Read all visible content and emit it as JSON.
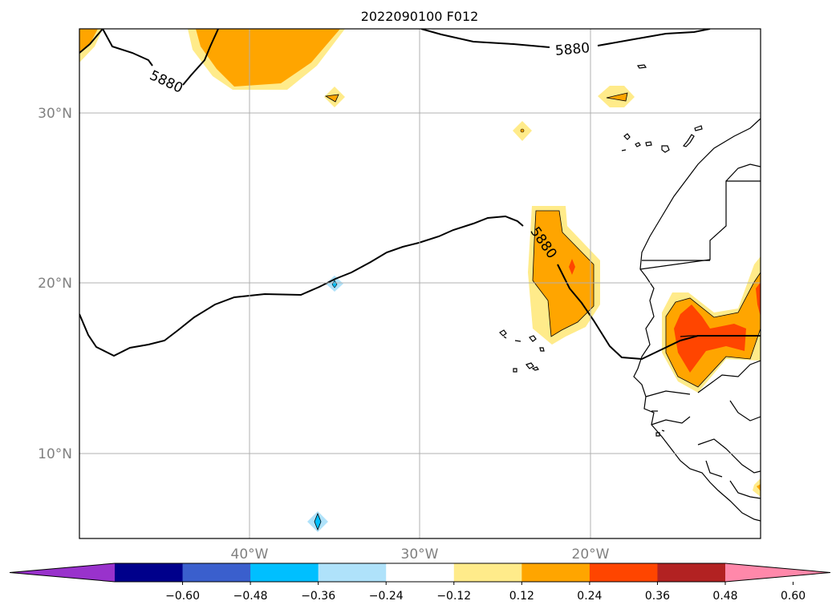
{
  "title": "2022090100 F012",
  "map": {
    "lat_labels": [
      "30°N",
      "20°N",
      "10°N"
    ],
    "lon_labels": [
      "40°W",
      "30°W",
      "20°W"
    ],
    "contour_labels": [
      "5880",
      "5880",
      "5880"
    ]
  },
  "colorbar": {
    "ticks": [
      "−0.60",
      "−0.48",
      "−0.36",
      "−0.24",
      "−0.12",
      "0.12",
      "0.24",
      "0.36",
      "0.48",
      "0.60"
    ],
    "colors": [
      "#9932cc",
      "#00008b",
      "#3a5fcd",
      "#00bfff",
      "#afe2fa",
      "#ffffff",
      "#ffeb8a",
      "#ffa500",
      "#ff4500",
      "#b22222",
      "#ff88aa"
    ]
  }
}
